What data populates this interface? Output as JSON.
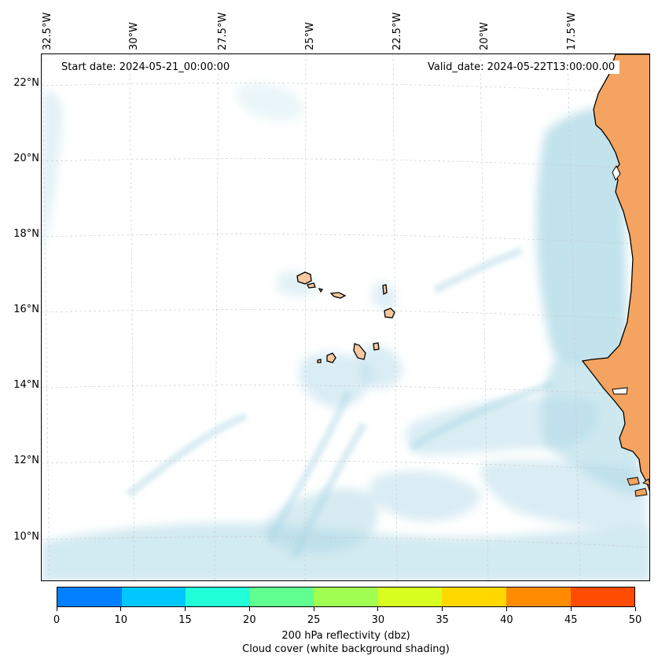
{
  "map": {
    "start_date": "Start date: 2024-05-21_00:00:00",
    "valid_date": "Valid_date: 2024-05-22T13:00:00.00",
    "lat_labels": [
      "22°N",
      "20°N",
      "18°N",
      "16°N",
      "14°N",
      "12°N",
      "10°N"
    ],
    "lon_labels": [
      "32.5°W",
      "30°W",
      "27.5°W",
      "25°W",
      "22.5°W",
      "20°W",
      "17.5°W"
    ],
    "land_color": "#f4a460",
    "island_color": "#f8c8a0",
    "cloud_color": "#add8e6",
    "gridlines": true
  },
  "colorbar": {
    "ticks": [
      "0",
      "10",
      "15",
      "20",
      "25",
      "30",
      "35",
      "40",
      "45",
      "50"
    ],
    "colors": [
      "#0080ff",
      "#00c8ff",
      "#20ffd8",
      "#60ff90",
      "#a0ff50",
      "#d8ff20",
      "#ffd800",
      "#ff8c00",
      "#ff4c00"
    ],
    "label": "200 hPa reflectivity (dbz)",
    "sublabel": "Cloud cover (white background shading)"
  }
}
